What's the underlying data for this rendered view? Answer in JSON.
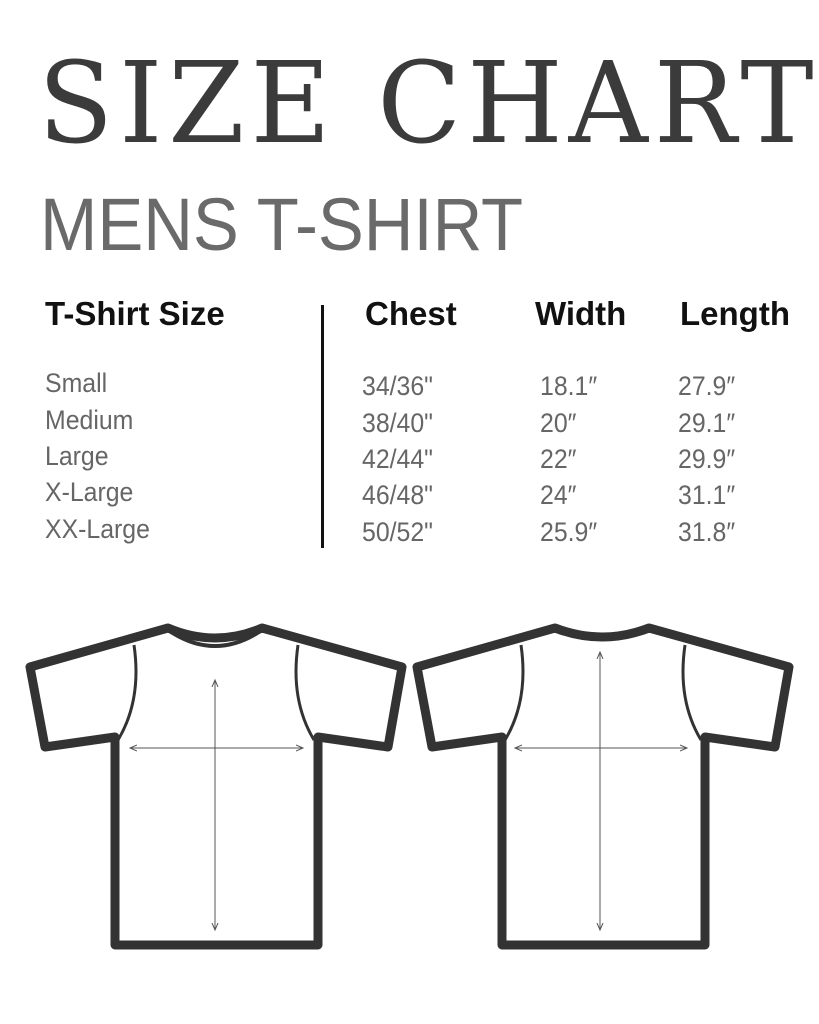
{
  "title": "SIZE CHART",
  "subtitle": "MENS T-SHIRT",
  "table": {
    "headers": [
      "T-Shirt Size",
      "Chest",
      "Width",
      "Length"
    ],
    "rows": [
      [
        "Small",
        "34/36\"",
        "18.1″",
        "27.9″"
      ],
      [
        "Medium",
        "38/40\"",
        "20″",
        "29.1″"
      ],
      [
        "Large",
        "42/44\"",
        "22″",
        "29.9″"
      ],
      [
        "X-Large",
        "46/48\"",
        "24″",
        "31.1″"
      ],
      [
        "XX-Large",
        "50/52\"",
        "25.9″",
        "31.8″"
      ]
    ]
  },
  "illustrations": [
    "t-shirt-front",
    "t-shirt-back"
  ],
  "colors": {
    "title": "#3b3b3b",
    "subtitle": "#6a6a6a",
    "outline": "#333333"
  }
}
